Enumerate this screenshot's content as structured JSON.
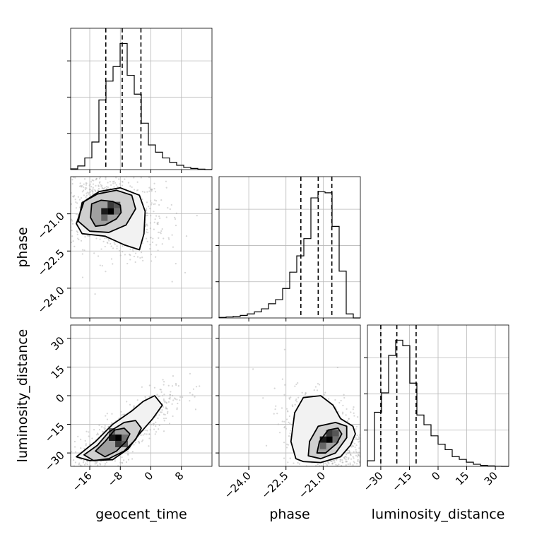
{
  "chart_data": {
    "type": "corner",
    "parameters": [
      "geocent_time",
      "phase",
      "luminosity_distance"
    ],
    "axis_labels": {
      "x": [
        "geocent_time",
        "phase",
        "luminosity_distance"
      ],
      "y": [
        "",
        "phase",
        "luminosity_distance"
      ]
    },
    "ranges": {
      "geocent_time": [
        -21,
        16
      ],
      "phase": [
        -25.2,
        -19.5
      ],
      "luminosity_distance": [
        -37,
        37
      ]
    },
    "ticks": {
      "geocent_time": [
        -16,
        -8,
        0,
        8
      ],
      "phase": [
        -24.0,
        -22.5,
        -21.0
      ],
      "luminosity_distance": [
        -30,
        -15,
        0,
        15,
        30
      ]
    },
    "tick_labels": {
      "geocent_time": [
        "−16",
        "−8",
        "0",
        "8"
      ],
      "phase": [
        "−24.0",
        "−22.5",
        "−21.0"
      ],
      "luminosity_distance": [
        "−30",
        "−15",
        "0",
        "15",
        "30"
      ]
    },
    "quantiles": {
      "geocent_time": [
        -11.8,
        -7.5,
        -2.6
      ],
      "phase": [
        -21.9,
        -21.2,
        -20.65
      ],
      "luminosity_distance": [
        -30,
        -21.6,
        -11.5
      ]
    },
    "histograms": {
      "geocent_time": {
        "bin_edges": [
          -21,
          -19.15,
          -17.3,
          -15.45,
          -13.6,
          -11.75,
          -9.9,
          -8.05,
          -6.2,
          -4.35,
          -2.5,
          -0.65,
          1.2,
          3.05,
          4.9,
          6.75,
          8.6,
          10.45,
          12.3,
          14.15,
          16
        ],
        "counts": [
          0.5,
          2.5,
          8,
          19,
          48,
          61,
          71,
          87,
          65,
          52,
          32,
          17,
          12,
          8,
          5,
          3,
          1.5,
          0.8,
          0.3,
          0
        ]
      },
      "phase": {
        "bin_edges": [
          -25.2,
          -24.915,
          -24.63,
          -24.345,
          -24.06,
          -23.775,
          -23.49,
          -23.205,
          -22.92,
          -22.635,
          -22.35,
          -22.065,
          -21.78,
          -21.495,
          -21.21,
          -20.925,
          -20.64,
          -20.355,
          -20.07,
          -19.785,
          -19.5
        ],
        "counts": [
          0.5,
          1,
          1.5,
          2.5,
          4,
          6,
          9,
          14,
          18,
          29,
          45,
          61,
          78,
          118,
          124,
          123,
          90,
          46,
          4,
          0
        ]
      },
      "luminosity_distance": {
        "bin_edges": [
          -37,
          -33.3,
          -29.6,
          -25.9,
          -22.2,
          -18.5,
          -14.8,
          -11.1,
          -7.4,
          -3.7,
          0,
          3.7,
          7.4,
          11.1,
          14.8,
          18.5,
          22.2,
          25.9,
          29.6,
          33.3,
          37
        ],
        "counts": [
          4,
          39,
          53,
          80,
          91,
          87,
          60,
          37,
          30,
          22,
          16,
          12,
          7,
          5,
          3,
          1.5,
          0.7,
          0.3,
          0.1,
          0
        ]
      }
    },
    "contours_2d": {
      "phase_vs_geocent_time": [
        [
          [
            -15.5,
            -20.6
          ],
          [
            -13,
            -20.45
          ],
          [
            -10,
            -20.5
          ],
          [
            -8,
            -20.65
          ],
          [
            -7.8,
            -20.95
          ],
          [
            -9,
            -21.2
          ],
          [
            -12,
            -21.45
          ],
          [
            -14.5,
            -21.5
          ],
          [
            -15.8,
            -21.15
          ]
        ],
        [
          [
            -18,
            -20.55
          ],
          [
            -14,
            -20.2
          ],
          [
            -9,
            -20.05
          ],
          [
            -5,
            -20.25
          ],
          [
            -4,
            -20.8
          ],
          [
            -6.5,
            -21.45
          ],
          [
            -11,
            -21.75
          ],
          [
            -16,
            -21.7
          ],
          [
            -19,
            -21.3
          ]
        ],
        [
          [
            -17.5,
            -20.5
          ],
          [
            -13.5,
            -20.1
          ],
          [
            -8,
            -19.95
          ],
          [
            -3,
            -20.25
          ],
          [
            -1.5,
            -20.9
          ],
          [
            -1.8,
            -21.8
          ],
          [
            -3,
            -22.45
          ],
          [
            -7,
            -22.25
          ],
          [
            -12,
            -21.9
          ],
          [
            -18,
            -21.8
          ],
          [
            -19.5,
            -21.4
          ]
        ]
      ],
      "luminosity_distance_vs_geocent_time": [
        [
          [
            -14.5,
            -29
          ],
          [
            -12,
            -24
          ],
          [
            -9.5,
            -18
          ],
          [
            -7,
            -17
          ],
          [
            -5.5,
            -20
          ],
          [
            -6.5,
            -24
          ],
          [
            -9,
            -29
          ],
          [
            -12,
            -32
          ]
        ],
        [
          [
            -17.5,
            -31
          ],
          [
            -14,
            -26
          ],
          [
            -11,
            -19
          ],
          [
            -7,
            -14
          ],
          [
            -4,
            -13
          ],
          [
            -2.5,
            -17
          ],
          [
            -4,
            -23
          ],
          [
            -7,
            -29
          ],
          [
            -11,
            -33
          ],
          [
            -15,
            -34
          ]
        ],
        [
          [
            -19.5,
            -32
          ],
          [
            -14.5,
            -24
          ],
          [
            -10,
            -15
          ],
          [
            -5,
            -8
          ],
          [
            -2,
            -3
          ],
          [
            1,
            0
          ],
          [
            3,
            -5
          ],
          [
            0.5,
            -12
          ],
          [
            -3,
            -20
          ],
          [
            -6,
            -28
          ],
          [
            -10,
            -33.5
          ],
          [
            -16,
            -34
          ]
        ]
      ],
      "luminosity_distance_vs_phase": [
        [
          [
            -21.25,
            -30
          ],
          [
            -21.15,
            -24
          ],
          [
            -20.8,
            -18
          ],
          [
            -20.4,
            -17
          ],
          [
            -20.25,
            -20
          ],
          [
            -20.45,
            -25
          ],
          [
            -20.9,
            -30
          ]
        ],
        [
          [
            -21.6,
            -31.5
          ],
          [
            -21.55,
            -24
          ],
          [
            -21.2,
            -16
          ],
          [
            -20.5,
            -14
          ],
          [
            -20.05,
            -16
          ],
          [
            -20.05,
            -22
          ],
          [
            -20.5,
            -30
          ],
          [
            -21.1,
            -33
          ]
        ],
        [
          [
            -22.1,
            -33
          ],
          [
            -22.3,
            -24
          ],
          [
            -22.15,
            -9
          ],
          [
            -21.8,
            -1
          ],
          [
            -21.1,
            0
          ],
          [
            -20.6,
            -5
          ],
          [
            -20.3,
            -12
          ],
          [
            -19.8,
            -16
          ],
          [
            -19.7,
            -20
          ],
          [
            -19.9,
            -26
          ],
          [
            -20.3,
            -32
          ],
          [
            -21.1,
            -35
          ],
          [
            -21.8,
            -34.5
          ]
        ]
      ]
    },
    "density_peaks": {
      "phase_vs_geocent_time": [
        -10.5,
        -20.9
      ],
      "luminosity_distance_vs_geocent_time": [
        -8.5,
        -22
      ],
      "luminosity_distance_vs_phase": [
        -20.75,
        -23
      ]
    },
    "grid": true,
    "line_color": "#000000",
    "scatter_color": "#b0b0b0"
  }
}
